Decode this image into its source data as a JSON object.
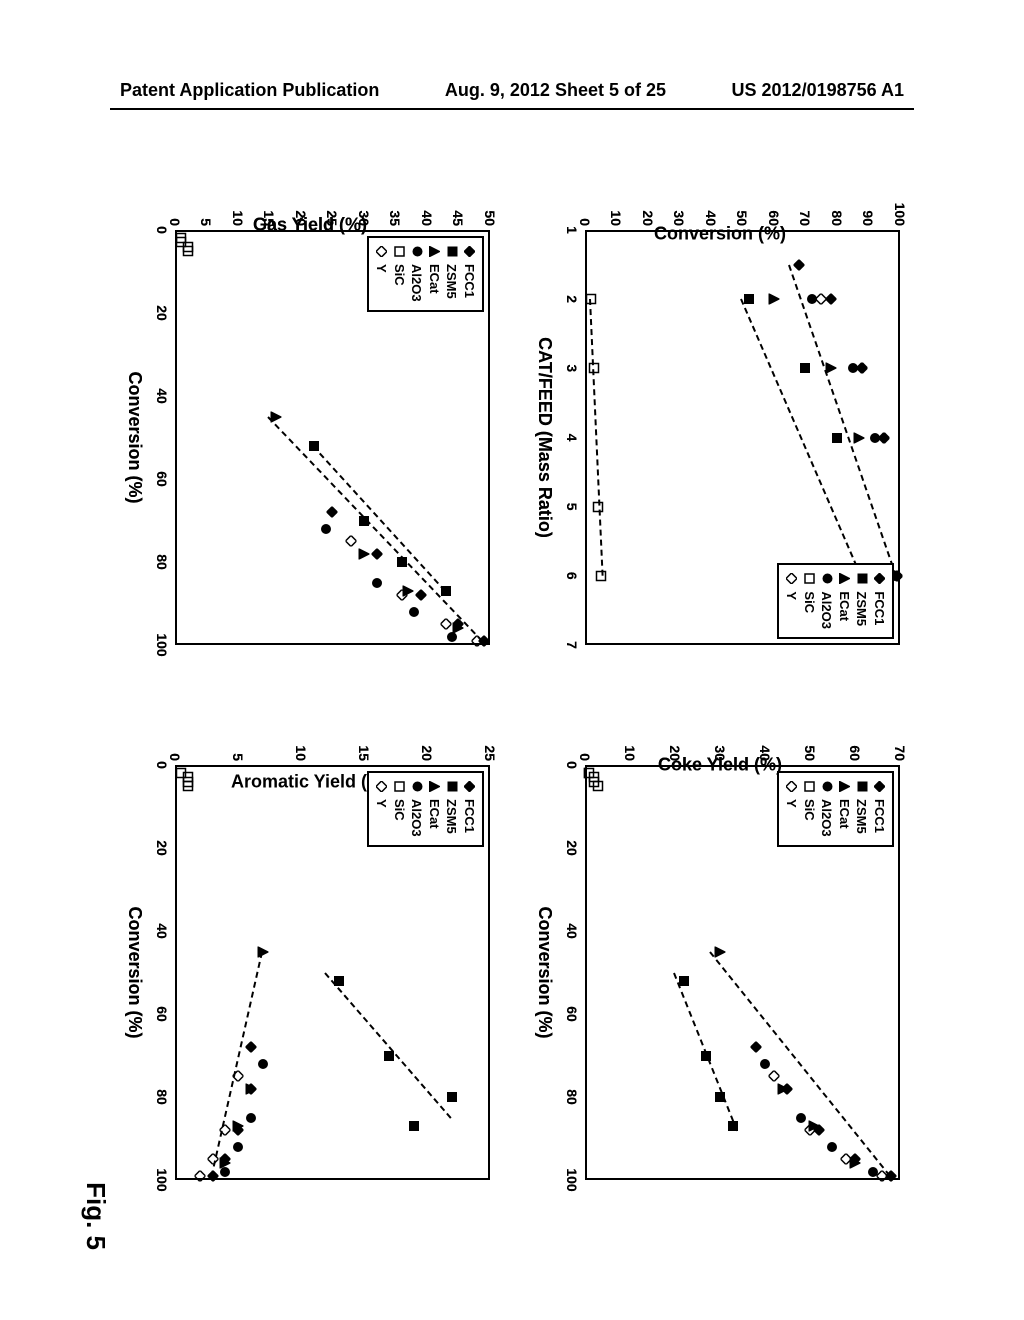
{
  "header": {
    "left": "Patent Application Publication",
    "center": "Aug. 9, 2012  Sheet 5 of 25",
    "right": "US 2012/0198756 A1"
  },
  "figure_caption": "Fig. 5",
  "legend_series": [
    {
      "name": "FCC1",
      "marker": "diamond-filled",
      "color": "#000000"
    },
    {
      "name": "ZSM5",
      "marker": "square-filled",
      "color": "#000000"
    },
    {
      "name": "ECat",
      "marker": "triangle-filled",
      "color": "#000000"
    },
    {
      "name": "Al2O3",
      "marker": "circle-filled",
      "color": "#000000"
    },
    {
      "name": "SiC",
      "marker": "square-open",
      "color": "#000000"
    },
    {
      "name": "Y",
      "marker": "diamond-open",
      "color": "#000000"
    }
  ],
  "panels": {
    "conversion_vs_catfeed": {
      "type": "scatter",
      "ylabel": "Conversion (%)",
      "xlabel": "CAT/FEED (Mass Ratio)",
      "xlim": [
        1,
        7
      ],
      "xticks": [
        1,
        2,
        3,
        4,
        5,
        6,
        7
      ],
      "ylim": [
        0,
        100
      ],
      "yticks": [
        0,
        10,
        20,
        30,
        40,
        50,
        60,
        70,
        80,
        90,
        100
      ],
      "legend_pos": "top-right",
      "series": {
        "FCC1": [
          [
            1.5,
            68
          ],
          [
            2,
            78
          ],
          [
            3,
            88
          ],
          [
            4,
            95
          ],
          [
            6,
            99
          ]
        ],
        "ZSM5": [
          [
            2,
            52
          ],
          [
            3,
            70
          ],
          [
            4,
            80
          ],
          [
            6,
            87
          ]
        ],
        "ECat": [
          [
            2,
            60
          ],
          [
            3,
            78
          ],
          [
            4,
            87
          ],
          [
            6,
            96
          ]
        ],
        "Al2O3": [
          [
            2,
            72
          ],
          [
            3,
            85
          ],
          [
            4,
            92
          ],
          [
            6,
            98
          ]
        ],
        "SiC": [
          [
            2,
            2
          ],
          [
            3,
            3
          ],
          [
            5,
            4
          ],
          [
            6,
            5
          ]
        ],
        "Y": [
          [
            2,
            75
          ],
          [
            3,
            88
          ],
          [
            4,
            95
          ],
          [
            6,
            99
          ]
        ]
      },
      "trends": [
        {
          "from": [
            1.5,
            65
          ],
          "to": [
            6,
            99
          ]
        },
        {
          "from": [
            2,
            50
          ],
          "to": [
            6,
            88
          ]
        },
        {
          "from": [
            2,
            2
          ],
          "to": [
            6,
            6
          ]
        }
      ]
    },
    "coke_vs_conversion": {
      "type": "scatter",
      "ylabel": "Coke Yield (%)",
      "xlabel": "Conversion (%)",
      "xlim": [
        0,
        100
      ],
      "xticks": [
        0,
        20,
        40,
        60,
        80,
        100
      ],
      "ylim": [
        0,
        70
      ],
      "yticks": [
        0,
        10,
        20,
        30,
        40,
        50,
        60,
        70
      ],
      "legend_pos": "top-left",
      "series": {
        "FCC1": [
          [
            68,
            38
          ],
          [
            78,
            45
          ],
          [
            88,
            52
          ],
          [
            95,
            60
          ],
          [
            99,
            68
          ]
        ],
        "ZSM5": [
          [
            52,
            22
          ],
          [
            70,
            27
          ],
          [
            80,
            30
          ],
          [
            87,
            33
          ]
        ],
        "ECat": [
          [
            45,
            30
          ],
          [
            78,
            44
          ],
          [
            87,
            51
          ],
          [
            96,
            60
          ]
        ],
        "Al2O3": [
          [
            72,
            40
          ],
          [
            85,
            48
          ],
          [
            92,
            55
          ],
          [
            98,
            64
          ]
        ],
        "SiC": [
          [
            2,
            1
          ],
          [
            3,
            2
          ],
          [
            4,
            2
          ],
          [
            5,
            3
          ]
        ],
        "Y": [
          [
            75,
            42
          ],
          [
            88,
            50
          ],
          [
            95,
            58
          ],
          [
            99,
            66
          ]
        ]
      },
      "trends": [
        {
          "from": [
            45,
            28
          ],
          "to": [
            99,
            68
          ]
        },
        {
          "from": [
            50,
            20
          ],
          "to": [
            88,
            34
          ]
        }
      ]
    },
    "gas_vs_conversion": {
      "type": "scatter",
      "ylabel": "Gas Yield (%)",
      "xlabel": "Conversion (%)",
      "xlim": [
        0,
        100
      ],
      "xticks": [
        0,
        20,
        40,
        60,
        80,
        100
      ],
      "ylim": [
        0,
        50
      ],
      "yticks": [
        0,
        5,
        10,
        15,
        20,
        25,
        30,
        35,
        40,
        45,
        50
      ],
      "legend_pos": "top-left",
      "series": {
        "FCC1": [
          [
            68,
            25
          ],
          [
            78,
            32
          ],
          [
            88,
            39
          ],
          [
            95,
            45
          ],
          [
            99,
            49
          ]
        ],
        "ZSM5": [
          [
            52,
            22
          ],
          [
            70,
            30
          ],
          [
            80,
            36
          ],
          [
            87,
            43
          ]
        ],
        "ECat": [
          [
            45,
            16
          ],
          [
            78,
            30
          ],
          [
            87,
            37
          ],
          [
            96,
            45
          ]
        ],
        "Al2O3": [
          [
            72,
            24
          ],
          [
            85,
            32
          ],
          [
            92,
            38
          ],
          [
            98,
            44
          ]
        ],
        "SiC": [
          [
            2,
            1
          ],
          [
            3,
            1
          ],
          [
            4,
            2
          ],
          [
            5,
            2
          ]
        ],
        "Y": [
          [
            75,
            28
          ],
          [
            88,
            36
          ],
          [
            95,
            43
          ],
          [
            99,
            48
          ]
        ]
      },
      "trends": [
        {
          "from": [
            45,
            15
          ],
          "to": [
            99,
            49
          ]
        },
        {
          "from": [
            52,
            22
          ],
          "to": [
            87,
            43
          ]
        }
      ]
    },
    "aromatic_vs_conversion": {
      "type": "scatter",
      "ylabel": "Aromatic Yield (%)",
      "xlabel": "Conversion (%)",
      "xlim": [
        0,
        100
      ],
      "xticks": [
        0,
        20,
        40,
        60,
        80,
        100
      ],
      "ylim": [
        0,
        25
      ],
      "yticks": [
        0,
        5,
        10,
        15,
        20,
        25
      ],
      "legend_pos": "top-left",
      "series": {
        "FCC1": [
          [
            68,
            6
          ],
          [
            78,
            6
          ],
          [
            88,
            5
          ],
          [
            95,
            4
          ],
          [
            99,
            3
          ]
        ],
        "ZSM5": [
          [
            52,
            13
          ],
          [
            70,
            17
          ],
          [
            80,
            22
          ],
          [
            87,
            19
          ]
        ],
        "ECat": [
          [
            45,
            7
          ],
          [
            78,
            6
          ],
          [
            87,
            5
          ],
          [
            96,
            4
          ]
        ],
        "Al2O3": [
          [
            72,
            7
          ],
          [
            85,
            6
          ],
          [
            92,
            5
          ],
          [
            98,
            4
          ]
        ],
        "SiC": [
          [
            2,
            0.5
          ],
          [
            3,
            1
          ],
          [
            4,
            1
          ],
          [
            5,
            1
          ]
        ],
        "Y": [
          [
            75,
            5
          ],
          [
            88,
            4
          ],
          [
            95,
            3
          ],
          [
            99,
            2
          ]
        ]
      },
      "trends": [
        {
          "from": [
            50,
            12
          ],
          "to": [
            85,
            22
          ]
        },
        {
          "from": [
            45,
            7
          ],
          "to": [
            99,
            3
          ]
        }
      ]
    }
  },
  "colors": {
    "axis": "#000000",
    "background": "#ffffff",
    "marker_fill": "#000000",
    "marker_stroke": "#000000",
    "trend_line": "#000000"
  },
  "font": {
    "axis_label_size": 18,
    "tick_size": 14,
    "legend_size": 13
  }
}
